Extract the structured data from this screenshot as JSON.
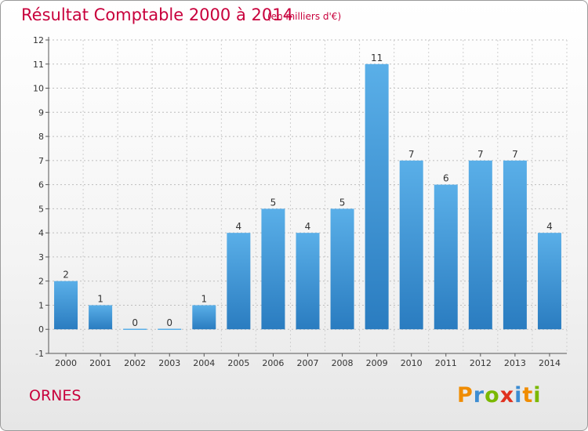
{
  "header": {
    "title": "Résultat Comptable 2000 à 2014",
    "subtitle": "(en milliers d'€)"
  },
  "footer": {
    "commune": "ORNES",
    "logo_text": "Proxiti"
  },
  "colors": {
    "title": "#c8003c",
    "bar_light": "#5aafe8",
    "bar_dark": "#2a7cc0"
  },
  "chart_data": {
    "type": "bar",
    "title": "Résultat Comptable 2000 à 2014",
    "subtitle": "(en milliers d'€)",
    "xlabel": "",
    "ylabel": "",
    "categories": [
      "2000",
      "2001",
      "2002",
      "2003",
      "2004",
      "2005",
      "2006",
      "2007",
      "2008",
      "2009",
      "2010",
      "2011",
      "2012",
      "2013",
      "2014"
    ],
    "values": [
      2,
      1,
      0,
      0,
      1,
      4,
      5,
      4,
      5,
      11,
      7,
      6,
      7,
      7,
      4
    ],
    "ylim": [
      -1,
      12
    ],
    "yticks": [
      -1,
      0,
      1,
      2,
      3,
      4,
      5,
      6,
      7,
      8,
      9,
      10,
      11,
      12
    ],
    "grid": true,
    "legend": "none"
  }
}
